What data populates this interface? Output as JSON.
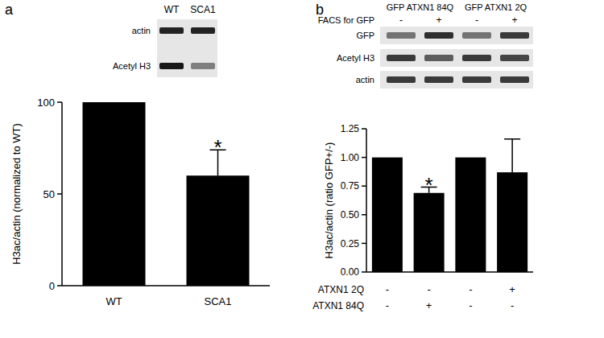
{
  "chart_data": [
    {
      "type": "bar",
      "panel_label": "a",
      "categories": [
        "WT",
        "SCA1"
      ],
      "values": [
        100,
        60
      ],
      "errors": [
        null,
        14
      ],
      "color": "#000000",
      "ylim": [
        0,
        100
      ],
      "yticks": [
        0,
        50,
        100
      ],
      "y_label": "H3ac/actin (normalized to WT)",
      "annotations": [
        {
          "text": "*",
          "category": 1
        }
      ],
      "blot": {
        "lanes": [
          "WT",
          "SCA1"
        ],
        "rows": [
          {
            "label": "actin",
            "intensity": [
              0.85,
              0.85
            ]
          },
          {
            "label": "Acetyl H3",
            "intensity": [
              0.9,
              0.45
            ]
          }
        ]
      }
    },
    {
      "type": "bar",
      "panel_label": "b",
      "categories": [
        null,
        null,
        null,
        null
      ],
      "values": [
        1.0,
        0.69,
        1.0,
        0.87
      ],
      "errors": [
        null,
        0.05,
        null,
        0.29
      ],
      "color": "#000000",
      "ylim": [
        0,
        1.25
      ],
      "yticks": [
        {
          "value": 0,
          "label": "0.00"
        },
        {
          "value": 0.25,
          "label": "0.25"
        },
        {
          "value": 0.5,
          "label": "0.50"
        },
        {
          "value": 0.75,
          "label": "0.75"
        },
        {
          "value": 1,
          "label": "1.00"
        },
        {
          "value": 1.25,
          "label": "1.25"
        }
      ],
      "y_label": "H3ac/actin (ratio GFP+/-)",
      "annotations": [
        {
          "text": "*",
          "category": 1
        }
      ],
      "conditions": [
        {
          "label": "ATXN1 2Q",
          "values": [
            "-",
            "-",
            "-",
            "+"
          ]
        },
        {
          "label": "ATXN1 84Q",
          "values": [
            "-",
            "+",
            "-",
            "-"
          ]
        }
      ],
      "blot": {
        "groups": [
          "GFP ATXN1 84Q",
          "GFP ATXN1 2Q"
        ],
        "lane_row": {
          "label": "FACS for GFP",
          "values": [
            "-",
            "+",
            "-",
            "+"
          ]
        },
        "rows": [
          {
            "label": "GFP",
            "intensity": [
              0.5,
              0.8,
              0.5,
              0.75
            ]
          },
          {
            "label": "Acetyl H3",
            "intensity": [
              0.75,
              0.6,
              0.75,
              0.7
            ]
          },
          {
            "label": "actin",
            "intensity": [
              0.75,
              0.75,
              0.75,
              0.75
            ]
          }
        ]
      }
    }
  ]
}
